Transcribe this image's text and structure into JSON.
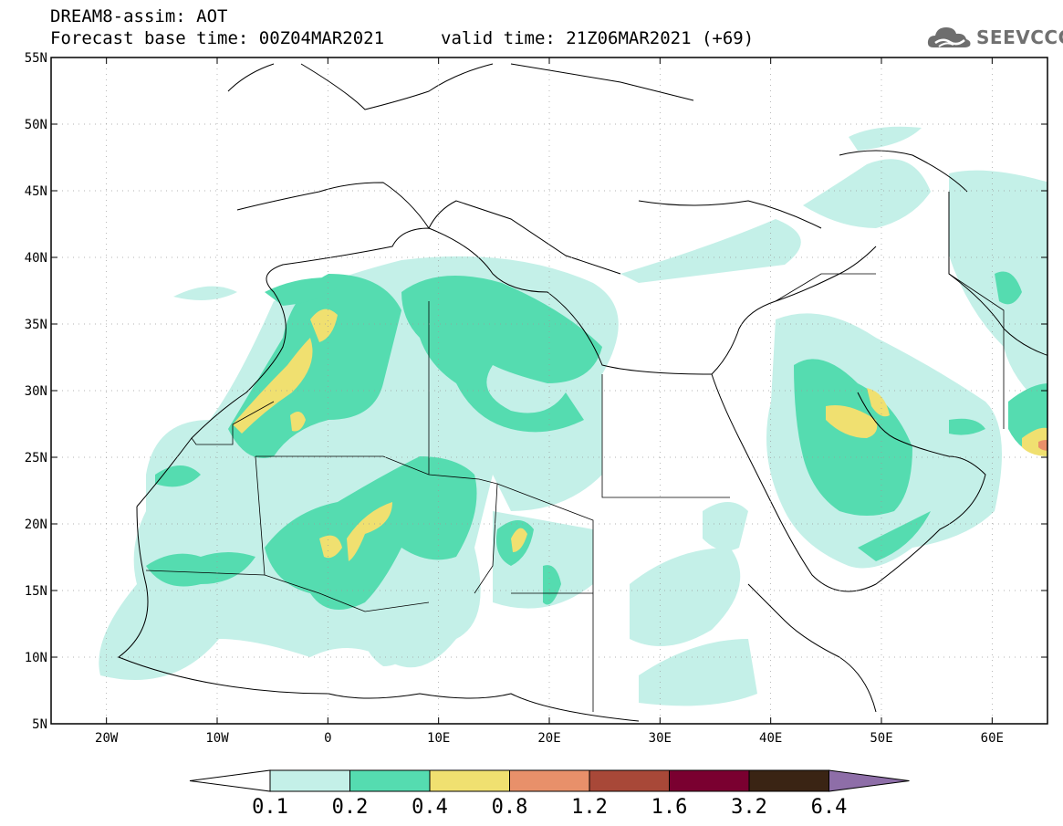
{
  "header": {
    "title_line1": "DREAM8-assim: AOT",
    "base_time": "Forecast base time: 00Z04MAR2021",
    "valid_time": "valid time: 21Z06MAR2021 (+69)"
  },
  "logo": {
    "text": "SEEVCCC",
    "icon": "cloud-icon"
  },
  "map": {
    "lon_range": [
      -25,
      65
    ],
    "lat_range": [
      5,
      55
    ],
    "lat_ticks": [
      {
        "value": 55,
        "label": "55N"
      },
      {
        "value": 50,
        "label": "50N"
      },
      {
        "value": 45,
        "label": "45N"
      },
      {
        "value": 40,
        "label": "40N"
      },
      {
        "value": 35,
        "label": "35N"
      },
      {
        "value": 30,
        "label": "30N"
      },
      {
        "value": 25,
        "label": "25N"
      },
      {
        "value": 20,
        "label": "20N"
      },
      {
        "value": 15,
        "label": "15N"
      },
      {
        "value": 10,
        "label": "10N"
      },
      {
        "value": 5,
        "label": "5N"
      }
    ],
    "lon_ticks": [
      {
        "value": -20,
        "label": "20W"
      },
      {
        "value": -10,
        "label": "10W"
      },
      {
        "value": 0,
        "label": "0"
      },
      {
        "value": 10,
        "label": "10E"
      },
      {
        "value": 20,
        "label": "20E"
      },
      {
        "value": 30,
        "label": "30E"
      },
      {
        "value": 40,
        "label": "40E"
      },
      {
        "value": 50,
        "label": "50E"
      },
      {
        "value": 60,
        "label": "60E"
      }
    ],
    "grid": true
  },
  "colorbar": {
    "labels": [
      "0.1",
      "0.2",
      "0.4",
      "0.8",
      "1.2",
      "1.6",
      "3.2",
      "6.4"
    ],
    "colors": [
      "#ffffff",
      "#c4f0e8",
      "#55dcb0",
      "#f0e070",
      "#e8906a",
      "#a84838",
      "#7a0030",
      "#3a2414",
      "#8e6ea8"
    ]
  }
}
